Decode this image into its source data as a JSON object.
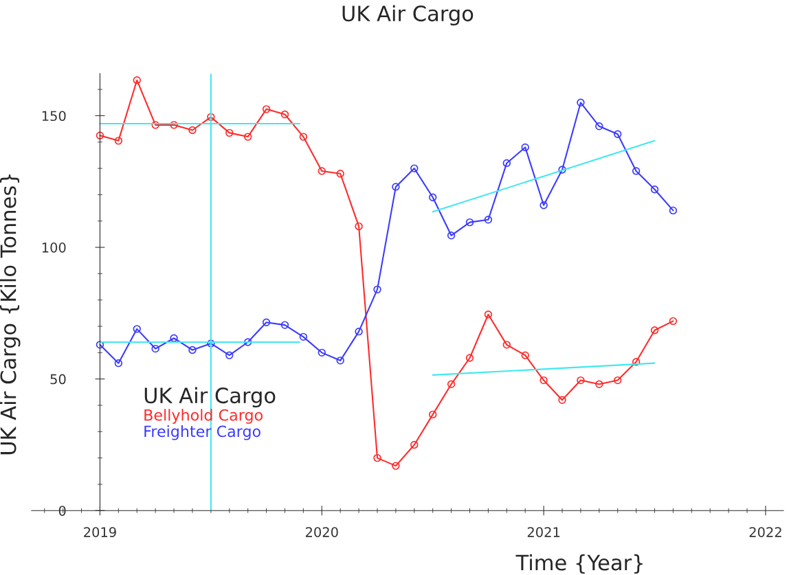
{
  "chart_data": {
    "type": "line",
    "title": "UK Air Cargo",
    "xlabel": "Time {Year}",
    "ylabel": "UK Air Cargo {Kilo Tonnes}",
    "legend_title": "UK Air Cargo",
    "legend": "bottom left",
    "marker": "circle",
    "grid": false,
    "x": [
      "2019-01",
      "2019-02",
      "2019-03",
      "2019-04",
      "2019-05",
      "2019-06",
      "2019-07",
      "2019-08",
      "2019-09",
      "2019-10",
      "2019-11",
      "2019-12",
      "2020-01",
      "2020-02",
      "2020-03",
      "2020-04",
      "2020-05",
      "2020-06",
      "2020-07",
      "2020-08",
      "2020-09",
      "2020-10",
      "2020-11",
      "2020-12",
      "2021-01",
      "2021-02",
      "2021-03",
      "2021-04",
      "2021-05",
      "2021-06",
      "2021-07",
      "2021-08"
    ],
    "series": [
      {
        "name": "Bellyhold Cargo",
        "color": "#ff2a2a",
        "values": [
          142.5,
          140.5,
          163.5,
          146.5,
          146.5,
          144.5,
          149.5,
          143.5,
          142,
          152.5,
          150.5,
          142,
          129,
          128,
          108,
          20,
          17,
          25,
          36.5,
          48,
          58,
          74.5,
          63,
          59,
          49.5,
          42,
          49.5,
          48,
          49.5,
          56.5,
          68.5,
          72
        ]
      },
      {
        "name": "Freighter Cargo",
        "color": "#3a3aff",
        "values": [
          63,
          56,
          69,
          61.5,
          65.5,
          61,
          63.5,
          59,
          64,
          71.5,
          70.5,
          66,
          60,
          57,
          68,
          84,
          123,
          130,
          119,
          104.5,
          109.5,
          110.5,
          132,
          138,
          116,
          129.5,
          155,
          146,
          143,
          129,
          122,
          114
        ]
      },
      {
        "type": "line",
        "marker": "none",
        "color": "#40e8f0",
        "x": [
          "2019-01",
          "2019-11-25"
        ],
        "values": [
          147,
          147
        ]
      },
      {
        "type": "line",
        "marker": "none",
        "color": "#40e8f0",
        "x": [
          "2019-01",
          "2019-11-25"
        ],
        "values": [
          64,
          64
        ]
      },
      {
        "type": "line",
        "marker": "none",
        "color": "#40e8f0",
        "x": [
          "2020-07",
          "2021-07"
        ],
        "values": [
          113.5,
          140.5
        ]
      },
      {
        "type": "line",
        "marker": "none",
        "color": "#40e8f0",
        "x": [
          "2020-07",
          "2021-07"
        ],
        "values": [
          51.5,
          56
        ]
      }
    ],
    "ref_lines": [
      {
        "axis": "x",
        "value": "2019-07",
        "color": "#40e8f0"
      }
    ],
    "xlim": [
      "2018-09-10",
      "2022-01-31"
    ],
    "xticks": [
      {
        "value": "2019-01",
        "label": "2019"
      },
      {
        "value": "2020-01",
        "label": "2020"
      },
      {
        "value": "2021-01",
        "label": "2021"
      },
      {
        "value": "2022-01",
        "label": "2022"
      }
    ],
    "ylim": [
      0,
      166
    ],
    "yticks": [
      0,
      50,
      100,
      150
    ]
  }
}
